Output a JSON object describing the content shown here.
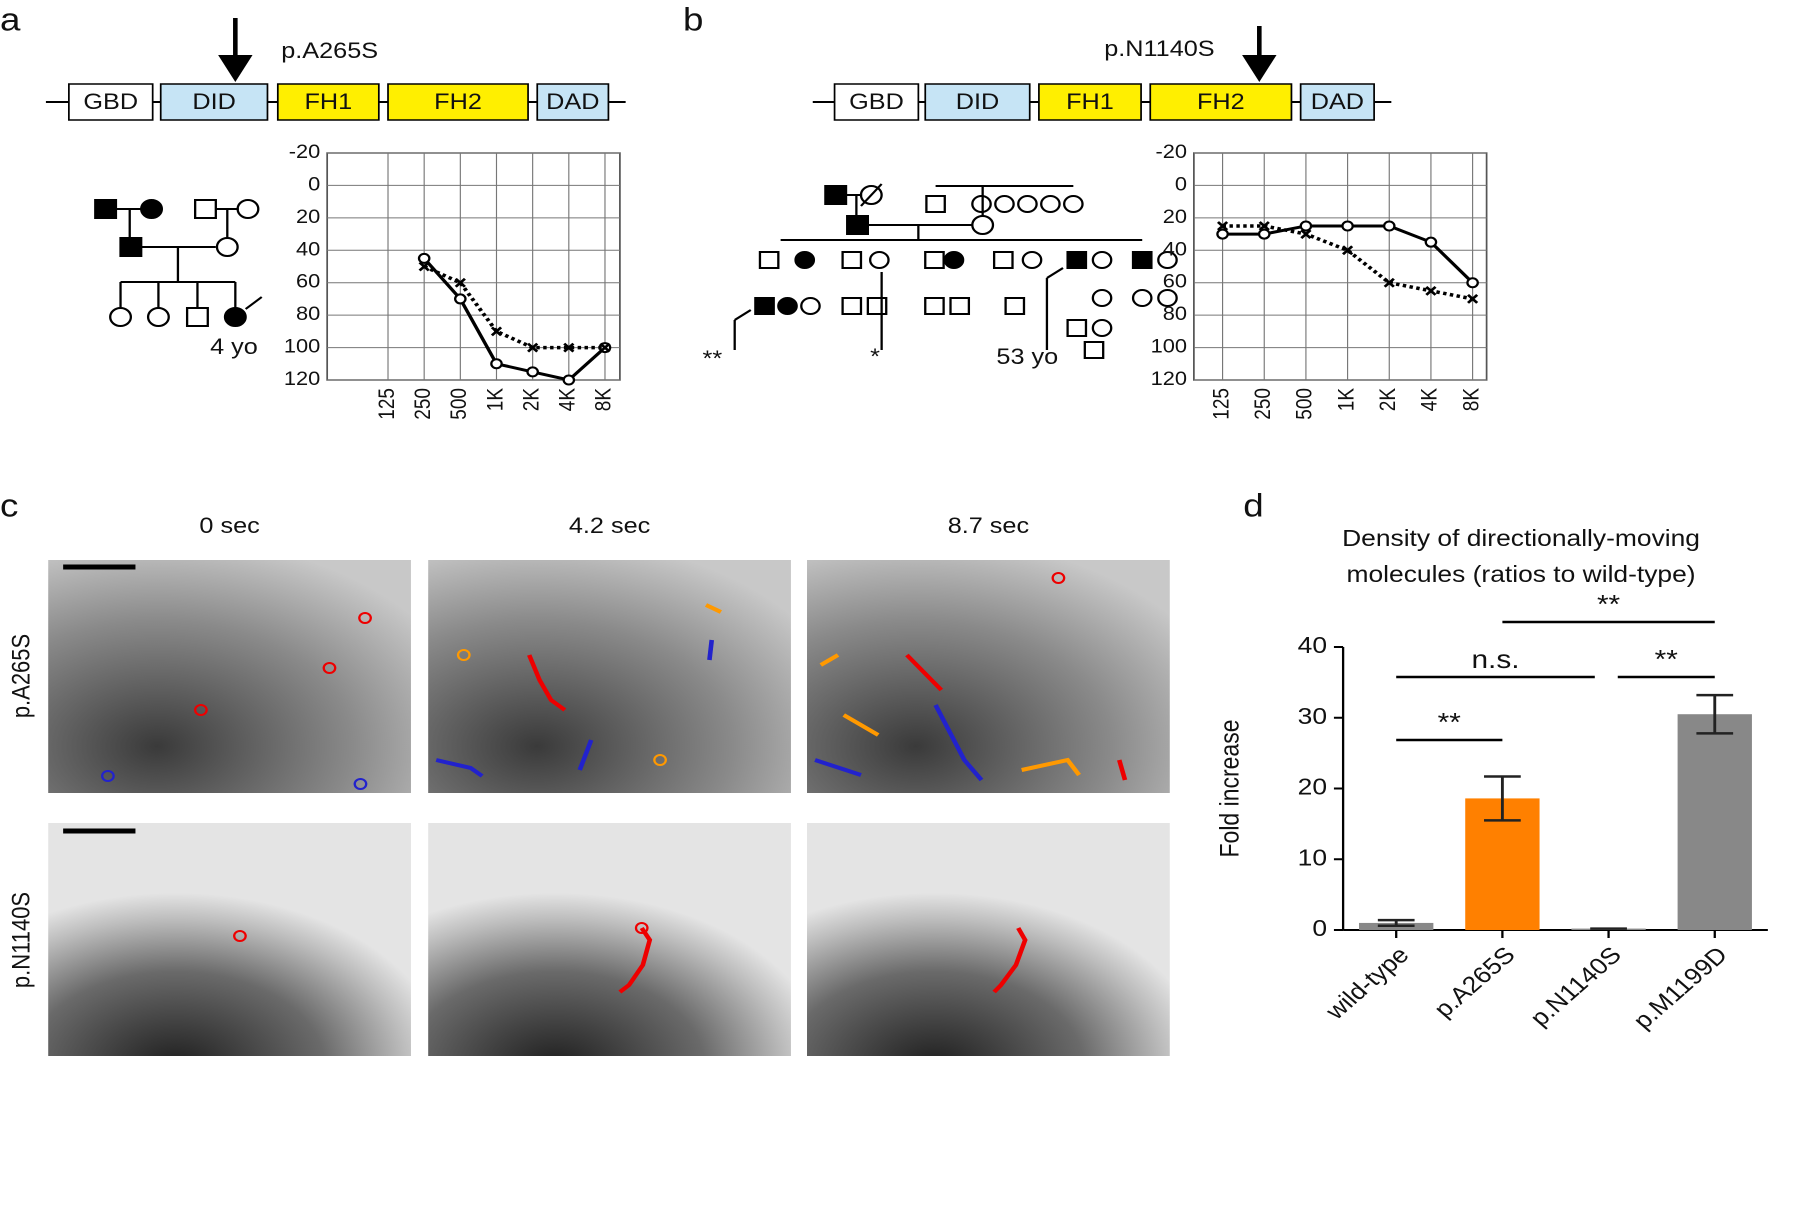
{
  "panel_letters": [
    "a",
    "b",
    "c",
    "d"
  ],
  "domain_a": {
    "mutation": "p.A265S",
    "domains": [
      {
        "label": "GBD",
        "color": "#ffffff"
      },
      {
        "label": "DID",
        "color": "#c6e4f5"
      },
      {
        "label": "FH1",
        "color": "#ffef00"
      },
      {
        "label": "FH2",
        "color": "#ffef00"
      },
      {
        "label": "DAD",
        "color": "#c6e4f5"
      }
    ]
  },
  "domain_b": {
    "mutation": "p.N1140S",
    "domains": [
      {
        "label": "GBD",
        "color": "#ffffff"
      },
      {
        "label": "DID",
        "color": "#c6e4f5"
      },
      {
        "label": "FH1",
        "color": "#ffef00"
      },
      {
        "label": "FH2",
        "color": "#ffef00"
      },
      {
        "label": "DAD",
        "color": "#c6e4f5"
      }
    ]
  },
  "pedigree_a": {
    "labels": [
      "4 yo"
    ]
  },
  "pedigree_b": {
    "labels": [
      "**",
      "*",
      "53 yo"
    ]
  },
  "microscopy": {
    "times": [
      "0 sec",
      "4.2 sec",
      "8.7 sec"
    ],
    "rows": [
      "p.A265S",
      "p.N1140S"
    ]
  },
  "chart_data": [
    {
      "type": "line",
      "categories": [
        "125",
        "250",
        "500",
        "1K",
        "2K",
        "4K",
        "8K"
      ],
      "ylim": [
        -20,
        120
      ],
      "y_inverted": true,
      "yticks": [
        -20,
        0,
        20,
        40,
        60,
        80,
        100,
        120
      ],
      "grid": true,
      "series": [
        {
          "color": "#000000",
          "line_style": "solid",
          "marker": "circle",
          "values": [
            null,
            45,
            70,
            110,
            115,
            120,
            100
          ]
        },
        {
          "color": "#000000",
          "line_style": "dotted",
          "marker": "x",
          "values": [
            null,
            50,
            60,
            90,
            100,
            100,
            100
          ]
        }
      ]
    },
    {
      "type": "line",
      "categories": [
        "125",
        "250",
        "500",
        "1K",
        "2K",
        "4K",
        "8K"
      ],
      "ylim": [
        -20,
        120
      ],
      "y_inverted": true,
      "yticks": [
        -20,
        0,
        20,
        40,
        60,
        80,
        100,
        120
      ],
      "grid": true,
      "series": [
        {
          "color": "#000000",
          "line_style": "solid",
          "marker": "circle",
          "values": [
            30,
            30,
            25,
            25,
            25,
            35,
            60
          ]
        },
        {
          "color": "#000000",
          "line_style": "dotted",
          "marker": "x",
          "values": [
            25,
            25,
            30,
            40,
            60,
            65,
            70
          ]
        }
      ]
    },
    {
      "type": "bar",
      "title": [
        "Density of directionally-moving",
        "molecules (ratios to wild-type)"
      ],
      "y_label": "Fold increase",
      "categories": [
        "wild-type",
        "p.A265S",
        "p.N1140S",
        "p.M1199D"
      ],
      "values": [
        1,
        18.6,
        0.2,
        30.5
      ],
      "errors": [
        0.4,
        3.1,
        0,
        2.7
      ],
      "colors": [
        "#888888",
        "#ff8000",
        "#888888",
        "#888888"
      ],
      "ylim": [
        0,
        40
      ],
      "yticks": [
        0,
        10,
        20,
        30,
        40
      ],
      "annotations": [
        {
          "label": "**",
          "between": [
            "wild-type",
            "p.A265S"
          ]
        },
        {
          "label": "n.s.",
          "between": [
            "wild-type",
            "p.N1140S"
          ]
        },
        {
          "label": "**",
          "between": [
            "p.N1140S",
            "p.M1199D"
          ]
        },
        {
          "label": "**",
          "between": [
            "p.A265S",
            "p.M1199D"
          ]
        }
      ]
    }
  ]
}
